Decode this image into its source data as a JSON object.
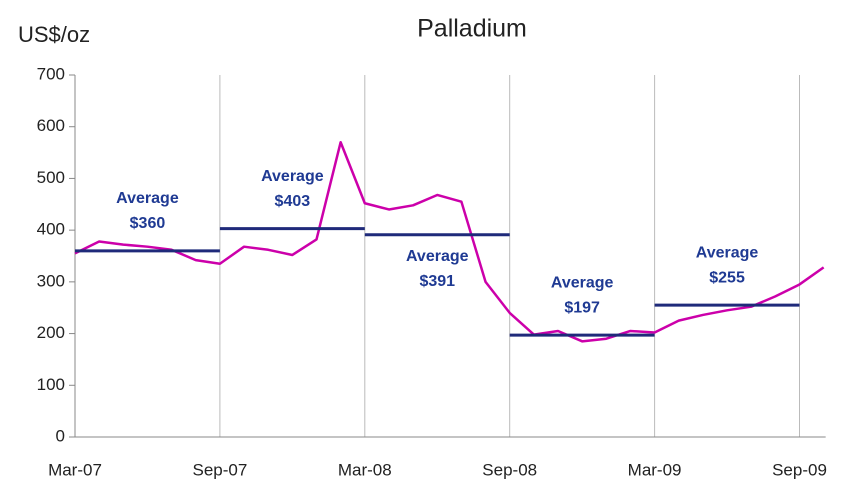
{
  "chart_data": {
    "type": "line",
    "title": "Palladium",
    "y_label": "US$/oz",
    "categories": [
      "Mar-07",
      null,
      null,
      null,
      null,
      null,
      "Sep-07",
      null,
      null,
      null,
      null,
      null,
      "Mar-08",
      null,
      null,
      null,
      null,
      null,
      "Sep-08",
      null,
      null,
      null,
      null,
      null,
      "Mar-09",
      null,
      null,
      null,
      null,
      null,
      "Sep-09",
      null
    ],
    "series": [
      {
        "name": "Palladium",
        "color": "#cc00aa",
        "values": [
          355,
          378,
          372,
          368,
          362,
          342,
          335,
          368,
          362,
          352,
          382,
          570,
          452,
          440,
          448,
          468,
          455,
          300,
          240,
          198,
          205,
          185,
          190,
          205,
          202,
          225,
          236,
          245,
          252,
          272,
          295,
          328
        ]
      }
    ],
    "averages": [
      {
        "label": "Average",
        "value": 360,
        "value_label": "$360",
        "from": "Mar-07",
        "to": "Sep-07",
        "label_position": "above"
      },
      {
        "label": "Average",
        "value": 403,
        "value_label": "$403",
        "from": "Sep-07",
        "to": "Mar-08",
        "label_position": "above"
      },
      {
        "label": "Average",
        "value": 391,
        "value_label": "$391",
        "from": "Mar-08",
        "to": "Sep-08",
        "label_position": "below"
      },
      {
        "label": "Average",
        "value": 197,
        "value_label": "$197",
        "from": "Sep-08",
        "to": "Mar-09",
        "label_position": "above"
      },
      {
        "label": "Average",
        "value": 255,
        "value_label": "$255",
        "from": "Mar-09",
        "to": "Sep-09",
        "label_position": "above"
      }
    ],
    "average_color": "#1f2a7a",
    "ylim": [
      0,
      700
    ],
    "yticks": [
      0,
      100,
      200,
      300,
      400,
      500,
      600,
      700
    ],
    "grid": true
  }
}
